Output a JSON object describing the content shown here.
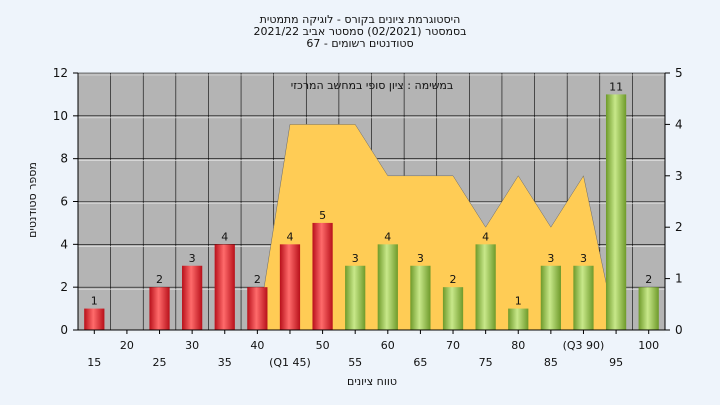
{
  "chart_data": {
    "type": "bar",
    "title_lines": [
      "היסטוגרמת ציונים בקורס - לוגיקה מתמטית",
      "בסמסטר  (02/2021)  סמסטר אביב 2021/22",
      "סטודנטים רשומים - 67"
    ],
    "ylabel": "מספר סטודנטים",
    "xlabel": "טווח ציונים",
    "annotation": "במשימה : ציון סופי במחשב המרכזי",
    "ylim": [
      0,
      12
    ],
    "yticks": [
      "0",
      "2",
      "4",
      "6",
      "8",
      "10",
      "12"
    ],
    "y2lim": [
      0,
      5
    ],
    "y2ticks": [
      "0",
      "1",
      "2",
      "3",
      "4",
      "5"
    ],
    "grid": true,
    "categories": [
      "15",
      "20",
      "25",
      "30",
      "35",
      "40",
      "(Q1 45)",
      "50",
      "55",
      "60",
      "65",
      "70",
      "75",
      "80",
      "85",
      "(Q3 90)",
      "95",
      "100"
    ],
    "values": [
      1,
      0,
      2,
      3,
      4,
      2,
      4,
      5,
      3,
      4,
      3,
      2,
      4,
      1,
      3,
      3,
      11,
      2
    ],
    "value_labels": [
      "1",
      "",
      "2",
      "3",
      "4",
      "2",
      "4",
      "5",
      "3",
      "4",
      "3",
      "2",
      "4",
      "1",
      "3",
      "3",
      "11",
      "2"
    ],
    "bar_colors": [
      "red",
      "red",
      "red",
      "red",
      "red",
      "red",
      "red",
      "red",
      "green",
      "green",
      "green",
      "green",
      "green",
      "green",
      "green",
      "green",
      "green",
      "green"
    ],
    "area_series": {
      "axis": "right",
      "values": [
        null,
        null,
        null,
        null,
        null,
        0,
        4,
        4,
        4,
        3,
        3,
        3,
        2,
        3,
        2,
        3,
        0,
        null
      ]
    },
    "colors": {
      "red_light": "#ff6b6b",
      "red_dark": "#b8101a",
      "green_light": "#c8e88a",
      "green_dark": "#6e9a2a",
      "area_fill": "#ffcc55",
      "plot_bg": "#b4b4b4",
      "gridline": "#000000"
    }
  }
}
